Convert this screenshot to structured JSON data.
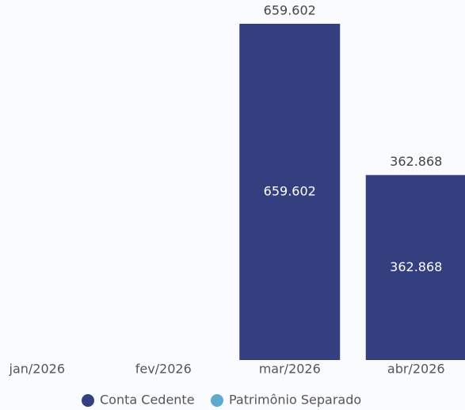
{
  "chart_data": {
    "type": "stacked-bar",
    "categories": [
      "jan/2026",
      "fev/2026",
      "mar/2026",
      "abr/2026"
    ],
    "series": [
      {
        "name": "Conta Cedente",
        "color": "#343f80",
        "values": [
          null,
          null,
          659602,
          362868
        ],
        "value_labels": [
          null,
          null,
          "659.602",
          "362.868"
        ]
      },
      {
        "name": "Patrimônio Separado",
        "color": "#5fa9cf",
        "values": [
          null,
          null,
          null,
          null
        ]
      }
    ],
    "totals": [
      null,
      null,
      659602,
      362868
    ],
    "total_labels": [
      null,
      null,
      "659.602",
      "362.868"
    ],
    "ylim": [
      0,
      700000
    ]
  }
}
